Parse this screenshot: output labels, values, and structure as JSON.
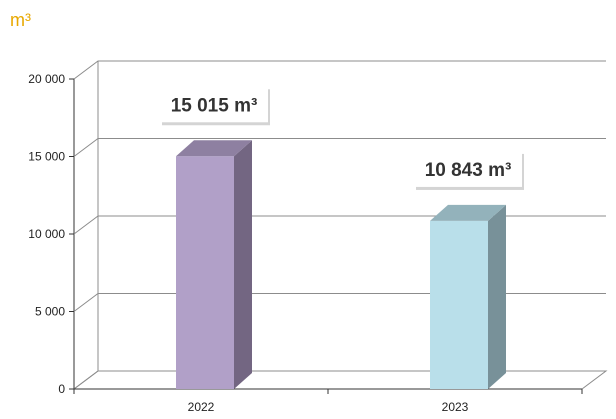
{
  "chart_data": {
    "type": "bar",
    "unit_label": "m³",
    "categories": [
      "2022",
      "2023"
    ],
    "values": [
      15015,
      10843
    ],
    "data_labels": [
      "15 015 m³",
      "10 843 m³"
    ],
    "y_tick_labels": [
      "0",
      "5 000",
      "10 000",
      "15 000",
      "20 000"
    ],
    "y_ticks": [
      0,
      5000,
      10000,
      15000,
      20000
    ],
    "ylim": [
      0,
      20000
    ],
    "grid": true,
    "legend": "none",
    "three_d": true
  },
  "colors": {
    "unit_label": "#e8a800",
    "bar_2022": "#b1a0c8",
    "bar_2022_side": "#736682",
    "bar_2022_top": "#8e80a1",
    "bar_2023": "#b9dfea",
    "bar_2023_side": "#789199",
    "bar_2023_top": "#93b2bb",
    "grid": "#8c8c8c",
    "axis": "#333333"
  }
}
